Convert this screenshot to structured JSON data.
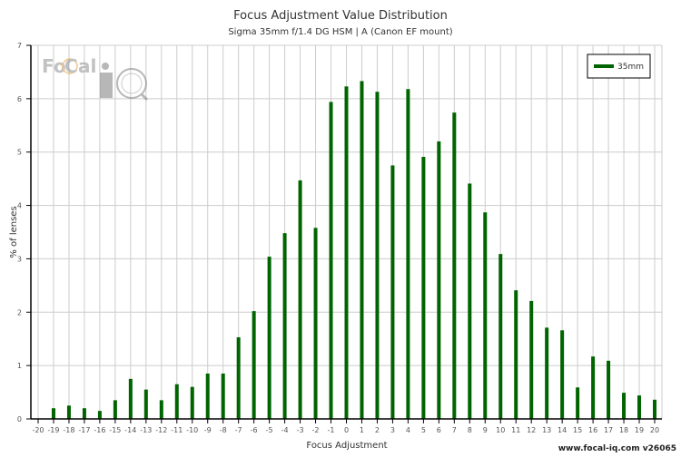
{
  "chart_data": {
    "type": "bar",
    "title": "Focus Adjustment Value Distribution",
    "subtitle": "Sigma 35mm f/1.4 DG HSM | A (Canon EF mount)",
    "xlabel": "Focus Adjustment",
    "ylabel": "% of lenses",
    "xlim": [
      -20,
      20
    ],
    "ylim": [
      0,
      7
    ],
    "yticks": [
      "0",
      "1",
      "2",
      "3",
      "4",
      "5",
      "6",
      "7"
    ],
    "grid": true,
    "legend_position": "top-right",
    "categories": [
      -20,
      -19,
      -18,
      -17,
      -16,
      -15,
      -14,
      -13,
      -12,
      -11,
      -10,
      -9,
      -8,
      -7,
      -6,
      -5,
      -4,
      -3,
      -2,
      -1,
      0,
      1,
      2,
      3,
      4,
      5,
      6,
      7,
      8,
      9,
      10,
      11,
      12,
      13,
      14,
      15,
      16,
      17,
      18,
      19,
      20
    ],
    "series": [
      {
        "name": "35mm",
        "color": "#006400",
        "values": [
          0,
          0.2,
          0.25,
          0.2,
          0.15,
          0.35,
          0.75,
          0.55,
          0.35,
          0.65,
          0.6,
          0.85,
          0.85,
          1.53,
          2.02,
          3.04,
          3.48,
          4.47,
          3.58,
          5.94,
          6.23,
          6.33,
          6.13,
          4.75,
          6.18,
          4.91,
          5.2,
          5.74,
          4.41,
          3.87,
          3.09,
          2.41,
          2.21,
          1.71,
          1.66,
          0.59,
          1.17,
          1.09,
          0.49,
          0.44,
          0.36
        ]
      }
    ],
    "footer": "www.focal-iq.com  v26065",
    "logo_text": "FoCal iQ"
  }
}
